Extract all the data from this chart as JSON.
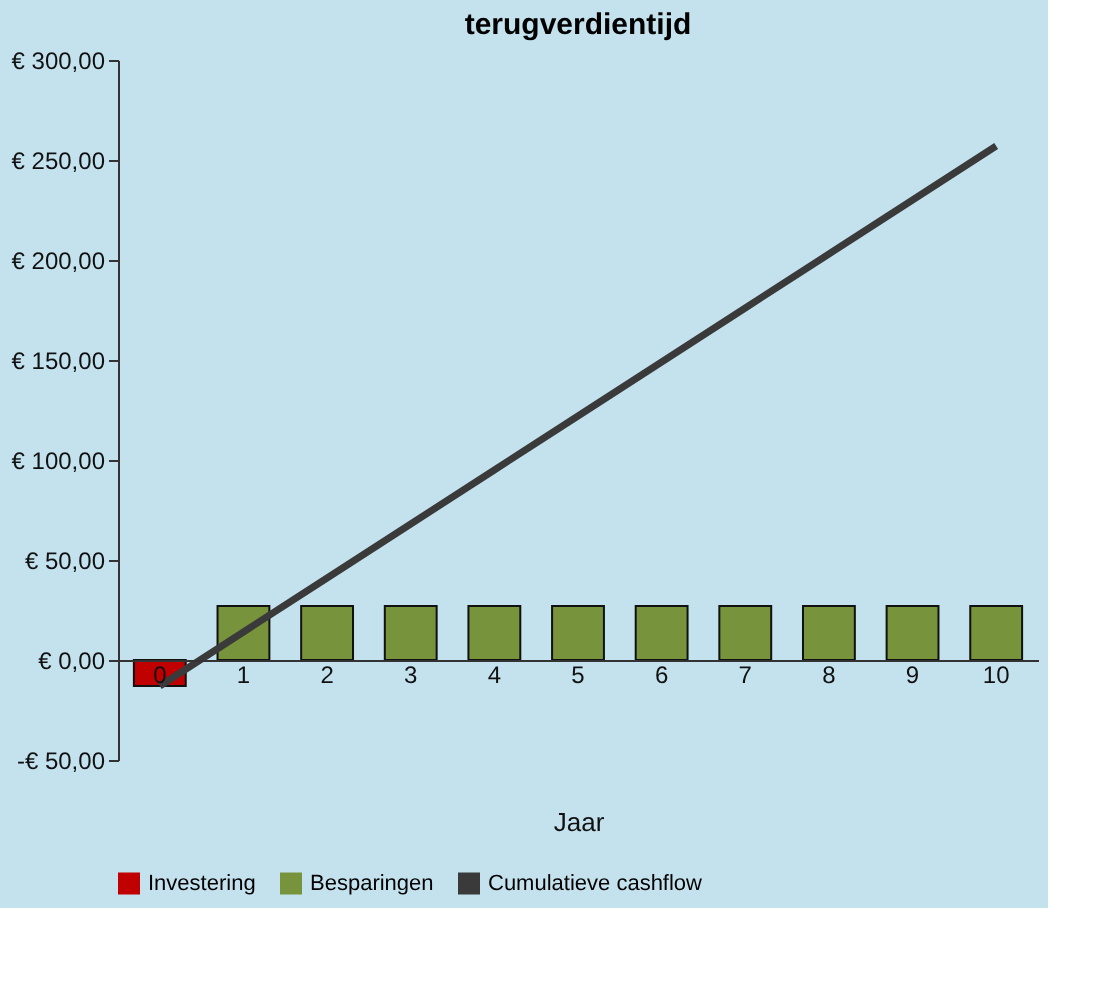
{
  "chart_data": {
    "type": "bar",
    "title": "terugverdientijd",
    "xlabel": "Jaar",
    "categories": [
      "0",
      "1",
      "2",
      "3",
      "4",
      "5",
      "6",
      "7",
      "8",
      "9",
      "10"
    ],
    "series": [
      {
        "name": "Investering",
        "color": "#c00000",
        "values": [
          -13,
          null,
          null,
          null,
          null,
          null,
          null,
          null,
          null,
          null,
          null
        ]
      },
      {
        "name": "Besparingen",
        "color": "#77933c",
        "values": [
          null,
          27,
          27,
          27,
          27,
          27,
          27,
          27,
          27,
          27,
          27
        ]
      },
      {
        "name": "Cumulatieve cashflow",
        "type": "line",
        "color": "#3a3a3a",
        "values": [
          -13,
          14,
          41,
          68,
          95,
          122,
          149,
          176,
          203,
          230,
          257
        ]
      }
    ],
    "ylim": [
      -50,
      300
    ],
    "yticks": [
      {
        "value": -50,
        "label": "-€ 50,00"
      },
      {
        "value": 0,
        "label": "€ 0,00"
      },
      {
        "value": 50,
        "label": "€ 50,00"
      },
      {
        "value": 100,
        "label": "€ 100,00"
      },
      {
        "value": 150,
        "label": "€ 150,00"
      },
      {
        "value": 200,
        "label": "€ 200,00"
      },
      {
        "value": 250,
        "label": "€ 250,00"
      },
      {
        "value": 300,
        "label": "€ 300,00"
      }
    ],
    "grid": false,
    "legend": "bottom",
    "marker": "none",
    "line_style": "solid"
  }
}
